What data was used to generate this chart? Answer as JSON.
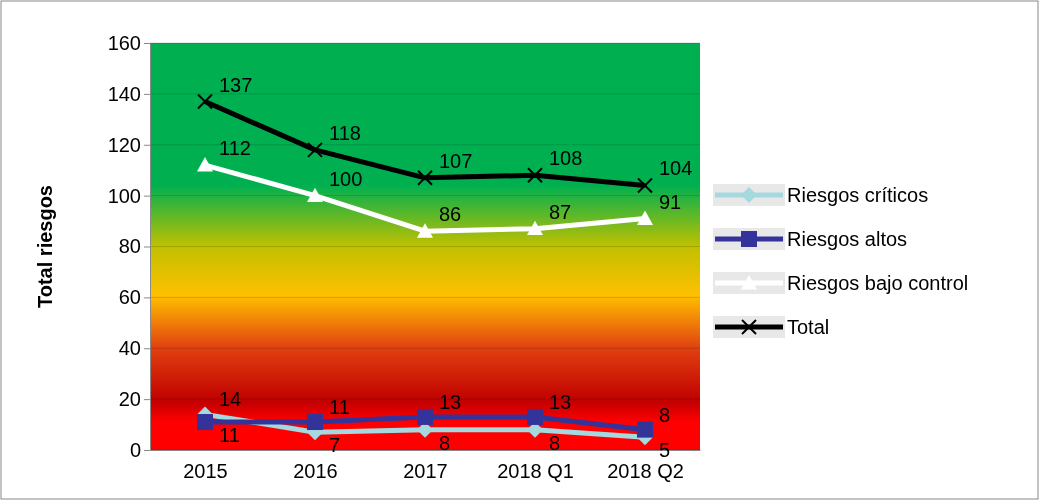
{
  "chart_data": {
    "type": "line",
    "ylabel": "Total riesgos",
    "categories": [
      "2015",
      "2016",
      "2017",
      "2018 Q1",
      "2018 Q2"
    ],
    "series": [
      {
        "name": "Riesgos críticos",
        "color": "#a5d9e0",
        "marker": "diamond",
        "values": [
          14,
          7,
          8,
          8,
          5
        ]
      },
      {
        "name": "Riesgos altos",
        "color": "#333399",
        "marker": "square",
        "values": [
          11,
          11,
          13,
          13,
          8
        ]
      },
      {
        "name": "Riesgos bajo control",
        "color": "#ffffff",
        "marker": "triangle",
        "values": [
          112,
          100,
          86,
          87,
          91
        ]
      },
      {
        "name": "Total",
        "color": "#000000",
        "marker": "cross",
        "values": [
          137,
          118,
          107,
          108,
          104
        ]
      }
    ],
    "ylim": [
      0,
      160
    ],
    "yticks": [
      0,
      20,
      40,
      60,
      80,
      100,
      120,
      140,
      160
    ],
    "grid": "y",
    "legend": "right",
    "data_labels": true,
    "line_style": "solid"
  }
}
